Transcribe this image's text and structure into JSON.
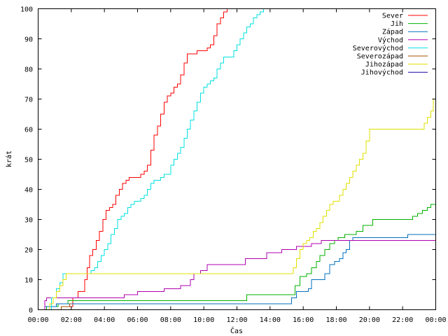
{
  "chart_data": {
    "type": "line",
    "xlabel": "Čas",
    "ylabel": "krát",
    "xlim": [
      0,
      24
    ],
    "ylim": [
      0,
      100
    ],
    "grid": false,
    "legend_position": "top-right",
    "x_ticks": [
      {
        "value": 0,
        "label": "00:00"
      },
      {
        "value": 2,
        "label": "02:00"
      },
      {
        "value": 4,
        "label": "04:00"
      },
      {
        "value": 6,
        "label": "06:00"
      },
      {
        "value": 8,
        "label": "08:00"
      },
      {
        "value": 10,
        "label": "10:00"
      },
      {
        "value": 12,
        "label": "12:00"
      },
      {
        "value": 14,
        "label": "14:00"
      },
      {
        "value": 16,
        "label": "16:00"
      },
      {
        "value": 18,
        "label": "18:00"
      },
      {
        "value": 20,
        "label": "20:00"
      },
      {
        "value": 22,
        "label": "22:00"
      },
      {
        "value": 24,
        "label": "00:00"
      }
    ],
    "y_ticks": [
      {
        "value": 0,
        "label": "0"
      },
      {
        "value": 10,
        "label": "10"
      },
      {
        "value": 20,
        "label": "20"
      },
      {
        "value": 30,
        "label": "30"
      },
      {
        "value": 40,
        "label": "40"
      },
      {
        "value": 50,
        "label": "50"
      },
      {
        "value": 60,
        "label": "60"
      },
      {
        "value": 70,
        "label": "70"
      },
      {
        "value": 80,
        "label": "80"
      },
      {
        "value": 90,
        "label": "90"
      },
      {
        "value": 100,
        "label": "100"
      }
    ],
    "series": [
      {
        "name": "Sever",
        "color": "#ff0000",
        "points": [
          [
            1.4,
            0
          ],
          [
            1.4,
            1
          ],
          [
            2.0,
            1
          ],
          [
            2.1,
            4
          ],
          [
            2.4,
            6
          ],
          [
            2.6,
            6
          ],
          [
            2.8,
            10
          ],
          [
            2.95,
            14
          ],
          [
            3.1,
            18
          ],
          [
            3.3,
            20
          ],
          [
            3.5,
            23
          ],
          [
            3.7,
            26
          ],
          [
            3.9,
            30
          ],
          [
            4.1,
            33
          ],
          [
            4.3,
            34
          ],
          [
            4.5,
            35
          ],
          [
            4.7,
            38
          ],
          [
            4.9,
            40
          ],
          [
            5.1,
            42
          ],
          [
            5.3,
            43
          ],
          [
            5.5,
            44
          ],
          [
            5.8,
            44
          ],
          [
            6.0,
            44
          ],
          [
            6.2,
            45
          ],
          [
            6.4,
            46
          ],
          [
            6.6,
            48
          ],
          [
            6.8,
            53
          ],
          [
            7.0,
            58
          ],
          [
            7.2,
            61
          ],
          [
            7.4,
            65
          ],
          [
            7.6,
            69
          ],
          [
            7.8,
            71
          ],
          [
            8.0,
            72
          ],
          [
            8.2,
            74
          ],
          [
            8.4,
            75
          ],
          [
            8.6,
            78
          ],
          [
            8.8,
            82
          ],
          [
            9.0,
            85
          ],
          [
            9.2,
            85
          ],
          [
            9.4,
            85
          ],
          [
            9.6,
            86
          ],
          [
            9.8,
            86
          ],
          [
            10.0,
            86
          ],
          [
            10.2,
            87
          ],
          [
            10.4,
            88
          ],
          [
            10.6,
            91
          ],
          [
            10.8,
            95
          ],
          [
            11.0,
            97
          ],
          [
            11.2,
            99
          ],
          [
            11.4,
            100
          ]
        ]
      },
      {
        "name": "Jih",
        "color": "#00b000",
        "points": [
          [
            0,
            0
          ],
          [
            0.5,
            0
          ],
          [
            0.5,
            1
          ],
          [
            1.0,
            1
          ],
          [
            1.2,
            2
          ],
          [
            1.6,
            2
          ],
          [
            1.8,
            3
          ],
          [
            2.0,
            3
          ],
          [
            12.6,
            3
          ],
          [
            12.6,
            5
          ],
          [
            15.3,
            5
          ],
          [
            15.5,
            8
          ],
          [
            15.8,
            11
          ],
          [
            16.0,
            11
          ],
          [
            16.2,
            12
          ],
          [
            16.5,
            14
          ],
          [
            16.8,
            16
          ],
          [
            17.0,
            18
          ],
          [
            17.3,
            20
          ],
          [
            17.6,
            22
          ],
          [
            17.9,
            23
          ],
          [
            18.1,
            24
          ],
          [
            18.5,
            25
          ],
          [
            19.0,
            25
          ],
          [
            19.2,
            26
          ],
          [
            19.6,
            28
          ],
          [
            20.0,
            28
          ],
          [
            20.2,
            30
          ],
          [
            20.5,
            30
          ],
          [
            21.0,
            30
          ],
          [
            21.5,
            30
          ],
          [
            22.0,
            30
          ],
          [
            22.6,
            31
          ],
          [
            22.9,
            32
          ],
          [
            23.2,
            33
          ],
          [
            23.5,
            34
          ],
          [
            23.7,
            35
          ],
          [
            24,
            35
          ]
        ]
      },
      {
        "name": "Západ",
        "color": "#0070c0",
        "points": [
          [
            0,
            0
          ],
          [
            0.4,
            0
          ],
          [
            0.4,
            1
          ],
          [
            0.9,
            1
          ],
          [
            1.1,
            2
          ],
          [
            15.2,
            2
          ],
          [
            15.3,
            4
          ],
          [
            15.6,
            6
          ],
          [
            16.0,
            6
          ],
          [
            16.3,
            7
          ],
          [
            16.5,
            10
          ],
          [
            17.0,
            10
          ],
          [
            17.3,
            12
          ],
          [
            17.6,
            15
          ],
          [
            17.9,
            16
          ],
          [
            18.2,
            17
          ],
          [
            18.4,
            19
          ],
          [
            18.6,
            20
          ],
          [
            18.8,
            23
          ],
          [
            19.0,
            24
          ],
          [
            19.3,
            24
          ],
          [
            20.0,
            24
          ],
          [
            22.0,
            24
          ],
          [
            22.3,
            25
          ],
          [
            24,
            25
          ]
        ]
      },
      {
        "name": "Východ",
        "color": "#b000b0",
        "points": [
          [
            0,
            0
          ],
          [
            0.3,
            0
          ],
          [
            0.4,
            3
          ],
          [
            0.5,
            4
          ],
          [
            1.5,
            4
          ],
          [
            2.5,
            4
          ],
          [
            4.0,
            4
          ],
          [
            4.5,
            4
          ],
          [
            4.7,
            4
          ],
          [
            5.1,
            4
          ],
          [
            5.2,
            5
          ],
          [
            5.7,
            5
          ],
          [
            6.0,
            6
          ],
          [
            7.5,
            6
          ],
          [
            7.6,
            7
          ],
          [
            8.2,
            7
          ],
          [
            8.6,
            8
          ],
          [
            9.0,
            8
          ],
          [
            9.2,
            10
          ],
          [
            9.4,
            12
          ],
          [
            9.8,
            13
          ],
          [
            10.2,
            15
          ],
          [
            11.5,
            15
          ],
          [
            12.5,
            17
          ],
          [
            13.5,
            17
          ],
          [
            13.8,
            19
          ],
          [
            14.5,
            19
          ],
          [
            14.7,
            20
          ],
          [
            15.4,
            20
          ],
          [
            15.6,
            21
          ],
          [
            16.3,
            21
          ],
          [
            16.5,
            22
          ],
          [
            17.0,
            22
          ],
          [
            17.1,
            23
          ],
          [
            17.5,
            23
          ],
          [
            24,
            23
          ]
        ]
      },
      {
        "name": "Severovýchod",
        "color": "#00e0e0",
        "points": [
          [
            0,
            0
          ],
          [
            0.6,
            0
          ],
          [
            0.8,
            4
          ],
          [
            1.1,
            7
          ],
          [
            1.3,
            9
          ],
          [
            1.5,
            12
          ],
          [
            1.8,
            12
          ],
          [
            2.8,
            12
          ],
          [
            3.0,
            12
          ],
          [
            3.2,
            13
          ],
          [
            3.4,
            14
          ],
          [
            3.6,
            16
          ],
          [
            3.8,
            18
          ],
          [
            4.0,
            20
          ],
          [
            4.2,
            22
          ],
          [
            4.4,
            25
          ],
          [
            4.6,
            27
          ],
          [
            4.8,
            30
          ],
          [
            5.0,
            31
          ],
          [
            5.2,
            32
          ],
          [
            5.4,
            34
          ],
          [
            5.6,
            35
          ],
          [
            5.8,
            36
          ],
          [
            6.0,
            36
          ],
          [
            6.2,
            37
          ],
          [
            6.4,
            38
          ],
          [
            6.6,
            40
          ],
          [
            6.8,
            42
          ],
          [
            7.0,
            43
          ],
          [
            7.2,
            43
          ],
          [
            7.4,
            44
          ],
          [
            7.6,
            45
          ],
          [
            7.8,
            45
          ],
          [
            8.0,
            48
          ],
          [
            8.2,
            50
          ],
          [
            8.4,
            52
          ],
          [
            8.6,
            54
          ],
          [
            8.8,
            57
          ],
          [
            9.0,
            60
          ],
          [
            9.2,
            63
          ],
          [
            9.4,
            66
          ],
          [
            9.6,
            69
          ],
          [
            9.8,
            72
          ],
          [
            10.0,
            74
          ],
          [
            10.2,
            75
          ],
          [
            10.4,
            76
          ],
          [
            10.6,
            77
          ],
          [
            10.8,
            80
          ],
          [
            11.0,
            82
          ],
          [
            11.2,
            84
          ],
          [
            11.4,
            84
          ],
          [
            11.6,
            84
          ],
          [
            11.8,
            86
          ],
          [
            12.0,
            88
          ],
          [
            12.2,
            90
          ],
          [
            12.4,
            92
          ],
          [
            12.6,
            94
          ],
          [
            12.8,
            95
          ],
          [
            13.0,
            97
          ],
          [
            13.2,
            98
          ],
          [
            13.4,
            99
          ],
          [
            13.6,
            100
          ]
        ]
      },
      {
        "name": "Severozápad",
        "color": "#a05000",
        "points": [
          [
            0,
            0
          ],
          [
            1.3,
            0
          ],
          [
            1.4,
            1
          ],
          [
            1.8,
            1
          ],
          [
            1.9,
            2
          ],
          [
            2.0,
            2
          ]
        ]
      },
      {
        "name": "Jihozápad",
        "color": "#e0e000",
        "points": [
          [
            0,
            0
          ],
          [
            0.6,
            0
          ],
          [
            0.7,
            2
          ],
          [
            0.9,
            4
          ],
          [
            1.1,
            6
          ],
          [
            1.3,
            8
          ],
          [
            1.5,
            10
          ],
          [
            1.7,
            12
          ],
          [
            2.5,
            12
          ],
          [
            3.0,
            12
          ],
          [
            5.0,
            12
          ],
          [
            10.0,
            12
          ],
          [
            12.0,
            12
          ],
          [
            14.0,
            12
          ],
          [
            15.2,
            12
          ],
          [
            15.4,
            14
          ],
          [
            15.6,
            17
          ],
          [
            15.8,
            20
          ],
          [
            16.0,
            22
          ],
          [
            16.2,
            23
          ],
          [
            16.4,
            24
          ],
          [
            16.6,
            26
          ],
          [
            16.8,
            27
          ],
          [
            17.0,
            29
          ],
          [
            17.2,
            31
          ],
          [
            17.4,
            33
          ],
          [
            17.6,
            35
          ],
          [
            17.8,
            36
          ],
          [
            18.0,
            36
          ],
          [
            18.2,
            38
          ],
          [
            18.4,
            40
          ],
          [
            18.6,
            42
          ],
          [
            18.8,
            44
          ],
          [
            19.0,
            46
          ],
          [
            19.2,
            48
          ],
          [
            19.4,
            50
          ],
          [
            19.6,
            52
          ],
          [
            19.8,
            56
          ],
          [
            20.0,
            60
          ],
          [
            20.5,
            60
          ],
          [
            21.0,
            60
          ],
          [
            22.0,
            60
          ],
          [
            22.5,
            60
          ],
          [
            23.0,
            60
          ],
          [
            23.3,
            62
          ],
          [
            23.5,
            64
          ],
          [
            23.7,
            66
          ],
          [
            23.85,
            70
          ],
          [
            24,
            73
          ]
        ]
      },
      {
        "name": "Jihovýchod",
        "color": "#2000a0",
        "points": [
          [
            0,
            0
          ],
          [
            24,
            0
          ]
        ]
      }
    ]
  }
}
